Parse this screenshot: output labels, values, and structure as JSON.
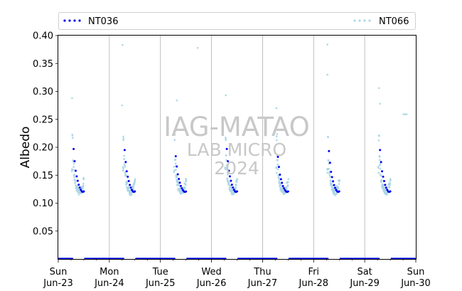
{
  "chart_data": {
    "type": "scatter",
    "ylabel": "Albedo",
    "xlabel": "",
    "ylim": [
      0.0,
      0.4
    ],
    "xlim": [
      0,
      7
    ],
    "yticks": [
      "0.05",
      "0.10",
      "0.15",
      "0.20",
      "0.25",
      "0.30",
      "0.35",
      "0.40"
    ],
    "yticks_values": [
      0.05,
      0.1,
      0.15,
      0.2,
      0.25,
      0.3,
      0.35,
      0.4
    ],
    "xticks": [
      {
        "day": "Sun",
        "date": "Jun-23",
        "x": 0
      },
      {
        "day": "Mon",
        "date": "Jun-24",
        "x": 1
      },
      {
        "day": "Tue",
        "date": "Jun-25",
        "x": 2
      },
      {
        "day": "Wed",
        "date": "Jun-26",
        "x": 3
      },
      {
        "day": "Thu",
        "date": "Jun-27",
        "x": 4
      },
      {
        "day": "Fri",
        "date": "Jun-28",
        "x": 5
      },
      {
        "day": "Sat",
        "date": "Jun-29",
        "x": 6
      },
      {
        "day": "Sun",
        "date": "Jun-30",
        "x": 7
      }
    ],
    "grid": "vertical",
    "legend_placement": "top",
    "series": [
      {
        "name": "NT036",
        "color": "#0000ee",
        "daily_pattern": [
          [
            0.3,
            0.197
          ],
          [
            0.32,
            0.175
          ],
          [
            0.34,
            0.158
          ],
          [
            0.36,
            0.148
          ],
          [
            0.38,
            0.14
          ],
          [
            0.4,
            0.133
          ],
          [
            0.42,
            0.128
          ],
          [
            0.44,
            0.124
          ],
          [
            0.46,
            0.121
          ],
          [
            0.48,
            0.12
          ],
          [
            0.5,
            0.121
          ]
        ],
        "day_scale": [
          1.0,
          0.975,
          0.83,
          1.0,
          0.815,
          0.95,
          0.975
        ],
        "night_value": 0.0
      },
      {
        "name": "NT066",
        "color": "#add8e6",
        "daily_pattern": [
          [
            0.27,
            0.16
          ],
          [
            0.28,
            0.218
          ],
          [
            0.29,
            0.18
          ],
          [
            0.3,
            0.165
          ],
          [
            0.31,
            0.15
          ],
          [
            0.32,
            0.145
          ],
          [
            0.33,
            0.138
          ],
          [
            0.34,
            0.135
          ],
          [
            0.35,
            0.13
          ],
          [
            0.36,
            0.128
          ],
          [
            0.37,
            0.126
          ],
          [
            0.38,
            0.124
          ],
          [
            0.39,
            0.122
          ],
          [
            0.4,
            0.121
          ],
          [
            0.41,
            0.12
          ],
          [
            0.42,
            0.12
          ],
          [
            0.43,
            0.121
          ],
          [
            0.44,
            0.122
          ],
          [
            0.45,
            0.123
          ],
          [
            0.46,
            0.125
          ],
          [
            0.47,
            0.128
          ],
          [
            0.48,
            0.132
          ],
          [
            0.49,
            0.136
          ],
          [
            0.5,
            0.14
          ]
        ],
        "outliers": [
          [
            0.27,
            0.288
          ],
          [
            1.25,
            0.275
          ],
          [
            1.26,
            0.383
          ],
          [
            2.32,
            0.284
          ],
          [
            2.73,
            0.378
          ],
          [
            3.28,
            0.293
          ],
          [
            4.27,
            0.27
          ],
          [
            5.27,
            0.384
          ],
          [
            5.27,
            0.33
          ],
          [
            6.28,
            0.306
          ],
          [
            6.3,
            0.278
          ],
          [
            6.76,
            0.259
          ],
          [
            6.79,
            0.259
          ],
          [
            6.82,
            0.259
          ]
        ],
        "night_value": 0.0
      }
    ],
    "watermark": [
      "IAG-MATAO",
      "LAB MICRO",
      "2024"
    ]
  }
}
